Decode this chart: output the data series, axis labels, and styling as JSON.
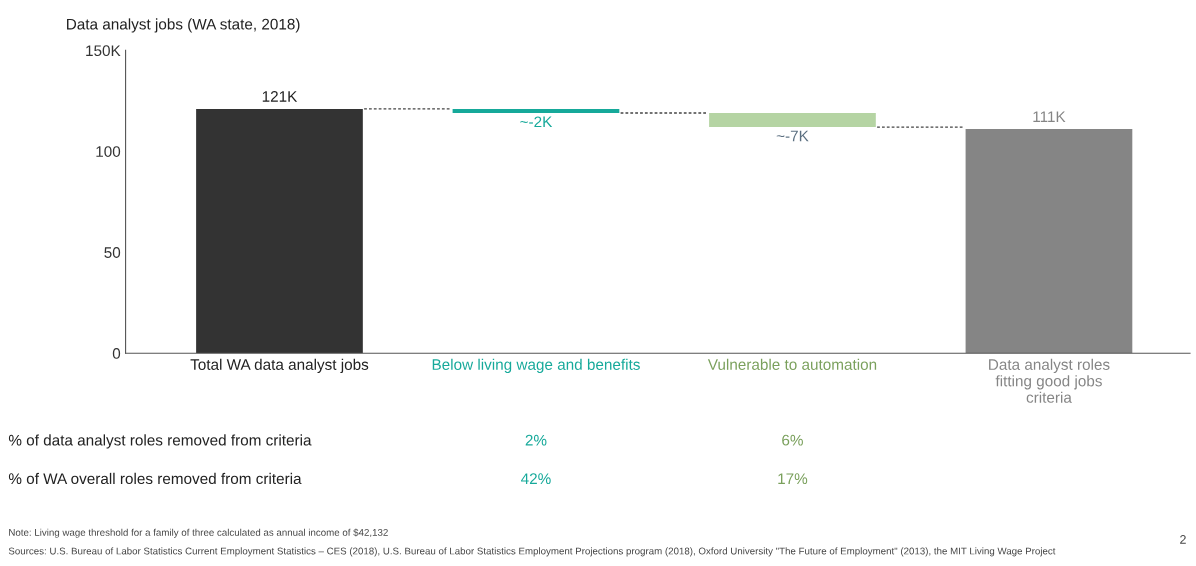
{
  "chart_data": {
    "type": "bar",
    "title": "Data analyst jobs (WA state, 2018)",
    "categories": [
      "Total WA data analyst jobs",
      "Below living wage and benefits",
      "Vulnerable to automation",
      "Data analyst roles\nfitting good jobs\ncriteria"
    ],
    "values": [
      121,
      -2,
      -7,
      111
    ],
    "base": [
      0,
      121,
      119,
      0
    ],
    "colors": [
      "#333333",
      "#16a99a",
      "#b5d4a3",
      "#858585"
    ],
    "value_labels": [
      "121K",
      "~-2K",
      "~-7K",
      "111K"
    ],
    "ylim": [
      0,
      150
    ],
    "yticks": [
      0,
      50,
      100,
      {
        "value": 150,
        "label": "150K"
      }
    ],
    "grid": false,
    "annotations": [
      "% of data analyst roles removed from criteria",
      "2%",
      "6%",
      "% of WA overall roles removed from criteria",
      "42%",
      "17%",
      "Note: Living wage threshold for a family of three calculated as annual income of $42,132",
      "Sources: U.S. Bureau of Labor Statistics Current Employment Statistics – CES (2018), U.S. Bureau of Labor Statistics Employment Projections program (2018), Oxford University \"The Future of Employment\" (2013), the MIT Living Wage Project",
      "2"
    ]
  }
}
